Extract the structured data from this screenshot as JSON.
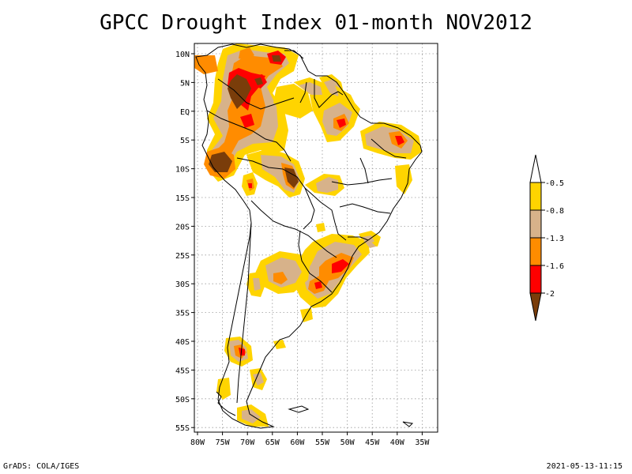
{
  "title": "GPCC Drought Index 01-month NOV2012",
  "map": {
    "region": "South America",
    "lon_labels": [
      "80W",
      "75W",
      "70W",
      "65W",
      "60W",
      "55W",
      "50W",
      "45W",
      "40W",
      "35W"
    ],
    "lat_labels": [
      "10N",
      "5N",
      "EQ",
      "5S",
      "10S",
      "15S",
      "20S",
      "25S",
      "30S",
      "35S",
      "40S",
      "45S",
      "50S",
      "55S"
    ]
  },
  "legend": {
    "labels": [
      "-0.5",
      "-0.8",
      "-1.3",
      "-1.6",
      "-2"
    ],
    "colors": [
      "#ffffff",
      "#ffd400",
      "#d7b28a",
      "#ff8c00",
      "#ff0000",
      "#7a3d0a"
    ]
  },
  "footer": {
    "left": "GrADS: COLA/IGES",
    "right": "2021-05-13-11:15"
  }
}
